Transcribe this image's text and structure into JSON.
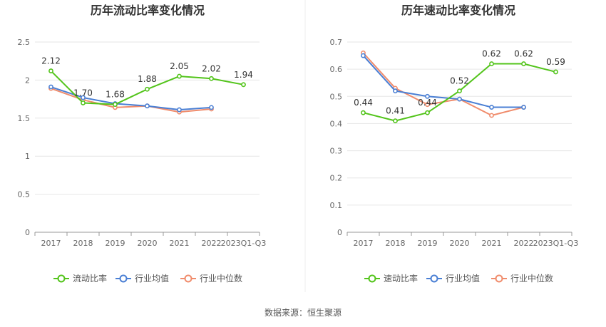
{
  "chart_data": [
    {
      "type": "line",
      "title": "历年流动比率变化情况",
      "categories": [
        "2017",
        "2018",
        "2019",
        "2020",
        "2021",
        "2022",
        "2023Q1-Q3"
      ],
      "ylim": [
        0,
        2.5
      ],
      "yticks": [
        "0",
        "0.5",
        "1",
        "1.5",
        "2",
        "2.5"
      ],
      "series": [
        {
          "name": "流动比率",
          "color": "#52c41a",
          "values": [
            2.12,
            1.7,
            1.68,
            1.88,
            2.05,
            2.02,
            1.94
          ],
          "labels": [
            "2.12",
            "1.70",
            "1.68",
            "1.88",
            "2.05",
            "2.02",
            "1.94"
          ]
        },
        {
          "name": "行业均值",
          "color": "#4a7fd4",
          "values": [
            1.91,
            1.77,
            1.69,
            1.66,
            1.61,
            1.64,
            null
          ]
        },
        {
          "name": "行业中位数",
          "color": "#f08c6c",
          "values": [
            1.89,
            1.74,
            1.64,
            1.66,
            1.58,
            1.62,
            null
          ]
        }
      ]
    },
    {
      "type": "line",
      "title": "历年速动比率变化情况",
      "categories": [
        "2017",
        "2018",
        "2019",
        "2020",
        "2021",
        "2022",
        "2023Q1-Q3"
      ],
      "ylim": [
        0,
        0.7
      ],
      "yticks": [
        "0",
        "0.1",
        "0.2",
        "0.3",
        "0.4",
        "0.5",
        "0.6",
        "0.7"
      ],
      "series": [
        {
          "name": "速动比率",
          "color": "#52c41a",
          "values": [
            0.44,
            0.41,
            0.44,
            0.52,
            0.62,
            0.62,
            0.59
          ],
          "labels": [
            "0.44",
            "0.41",
            "0.44",
            "0.52",
            "0.62",
            "0.62",
            "0.59"
          ]
        },
        {
          "name": "行业均值",
          "color": "#4a7fd4",
          "values": [
            0.65,
            0.52,
            0.5,
            0.49,
            0.46,
            0.46,
            null
          ]
        },
        {
          "name": "行业中位数",
          "color": "#f08c6c",
          "values": [
            0.66,
            0.53,
            0.47,
            0.49,
            0.43,
            0.46,
            null
          ]
        }
      ]
    }
  ],
  "footer": {
    "source": "数据来源：恒生聚源"
  },
  "colors": {
    "grid": "#e6e6e6",
    "axis": "#999999",
    "divider": "#eeeeee"
  }
}
